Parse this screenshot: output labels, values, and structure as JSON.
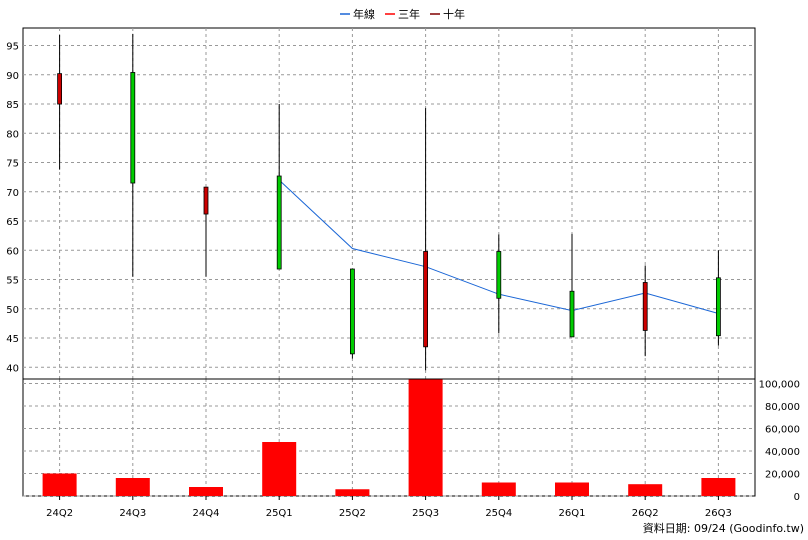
{
  "legend": [
    {
      "label": "年線",
      "color": "#1a66d6"
    },
    {
      "label": "三年",
      "color": "#ff0000"
    },
    {
      "label": "十年",
      "color": "#800000"
    }
  ],
  "footer": "資料日期: 09/24  (Goodinfo.tw)",
  "chart_data": [
    {
      "type": "candlestick",
      "categories": [
        "24Q2",
        "24Q3",
        "24Q4",
        "25Q1",
        "25Q2",
        "25Q3",
        "25Q4",
        "26Q1",
        "26Q2",
        "26Q3"
      ],
      "ylim": [
        38,
        98
      ],
      "yticks": [
        40,
        45,
        50,
        55,
        60,
        65,
        70,
        75,
        80,
        85,
        90,
        95
      ],
      "grid": true,
      "candles": [
        {
          "open": 85.0,
          "high": 96.8,
          "low": 73.8,
          "close": 90.2,
          "color": "#cc0000"
        },
        {
          "open": 90.4,
          "high": 97.0,
          "low": 55.5,
          "close": 71.5,
          "color": "#00cc00"
        },
        {
          "open": 66.2,
          "high": 70.8,
          "low": 55.5,
          "close": 70.8,
          "color": "#cc0000"
        },
        {
          "open": 72.7,
          "high": 85.0,
          "low": 56.8,
          "close": 56.8,
          "color": "#00cc00"
        },
        {
          "open": 56.8,
          "high": 56.8,
          "low": 41.5,
          "close": 42.3,
          "color": "#00cc00"
        },
        {
          "open": 43.5,
          "high": 84.3,
          "low": 39.5,
          "close": 59.8,
          "color": "#cc0000"
        },
        {
          "open": 59.8,
          "high": 62.7,
          "low": 45.8,
          "close": 51.8,
          "color": "#00cc00"
        },
        {
          "open": 53.0,
          "high": 62.8,
          "low": 45.2,
          "close": 45.2,
          "color": "#00cc00"
        },
        {
          "open": 46.3,
          "high": 57.4,
          "low": 41.9,
          "close": 54.5,
          "color": "#cc0000"
        },
        {
          "open": 55.3,
          "high": 60.0,
          "low": 43.7,
          "close": 45.4,
          "color": "#00cc00"
        }
      ],
      "series": [
        {
          "name": "年線",
          "color": "#1a66d6",
          "values": [
            null,
            null,
            null,
            72.0,
            60.3,
            57.2,
            52.5,
            49.7,
            52.7,
            49.2
          ]
        }
      ]
    },
    {
      "type": "bar",
      "categories": [
        "24Q2",
        "24Q3",
        "24Q4",
        "25Q1",
        "25Q2",
        "25Q3",
        "25Q4",
        "26Q1",
        "26Q2",
        "26Q3"
      ],
      "values": [
        20000,
        16000,
        8000,
        48000,
        6000,
        104000,
        12000,
        12000,
        10500,
        16000
      ],
      "color": "#ff0000",
      "ylim": [
        0,
        104000
      ],
      "yticks": [
        0,
        20000,
        40000,
        60000,
        80000,
        100000
      ],
      "ytick_labels": [
        "0",
        "20,000",
        "40,000",
        "60,000",
        "80,000",
        "100,000"
      ],
      "grid": true
    }
  ]
}
